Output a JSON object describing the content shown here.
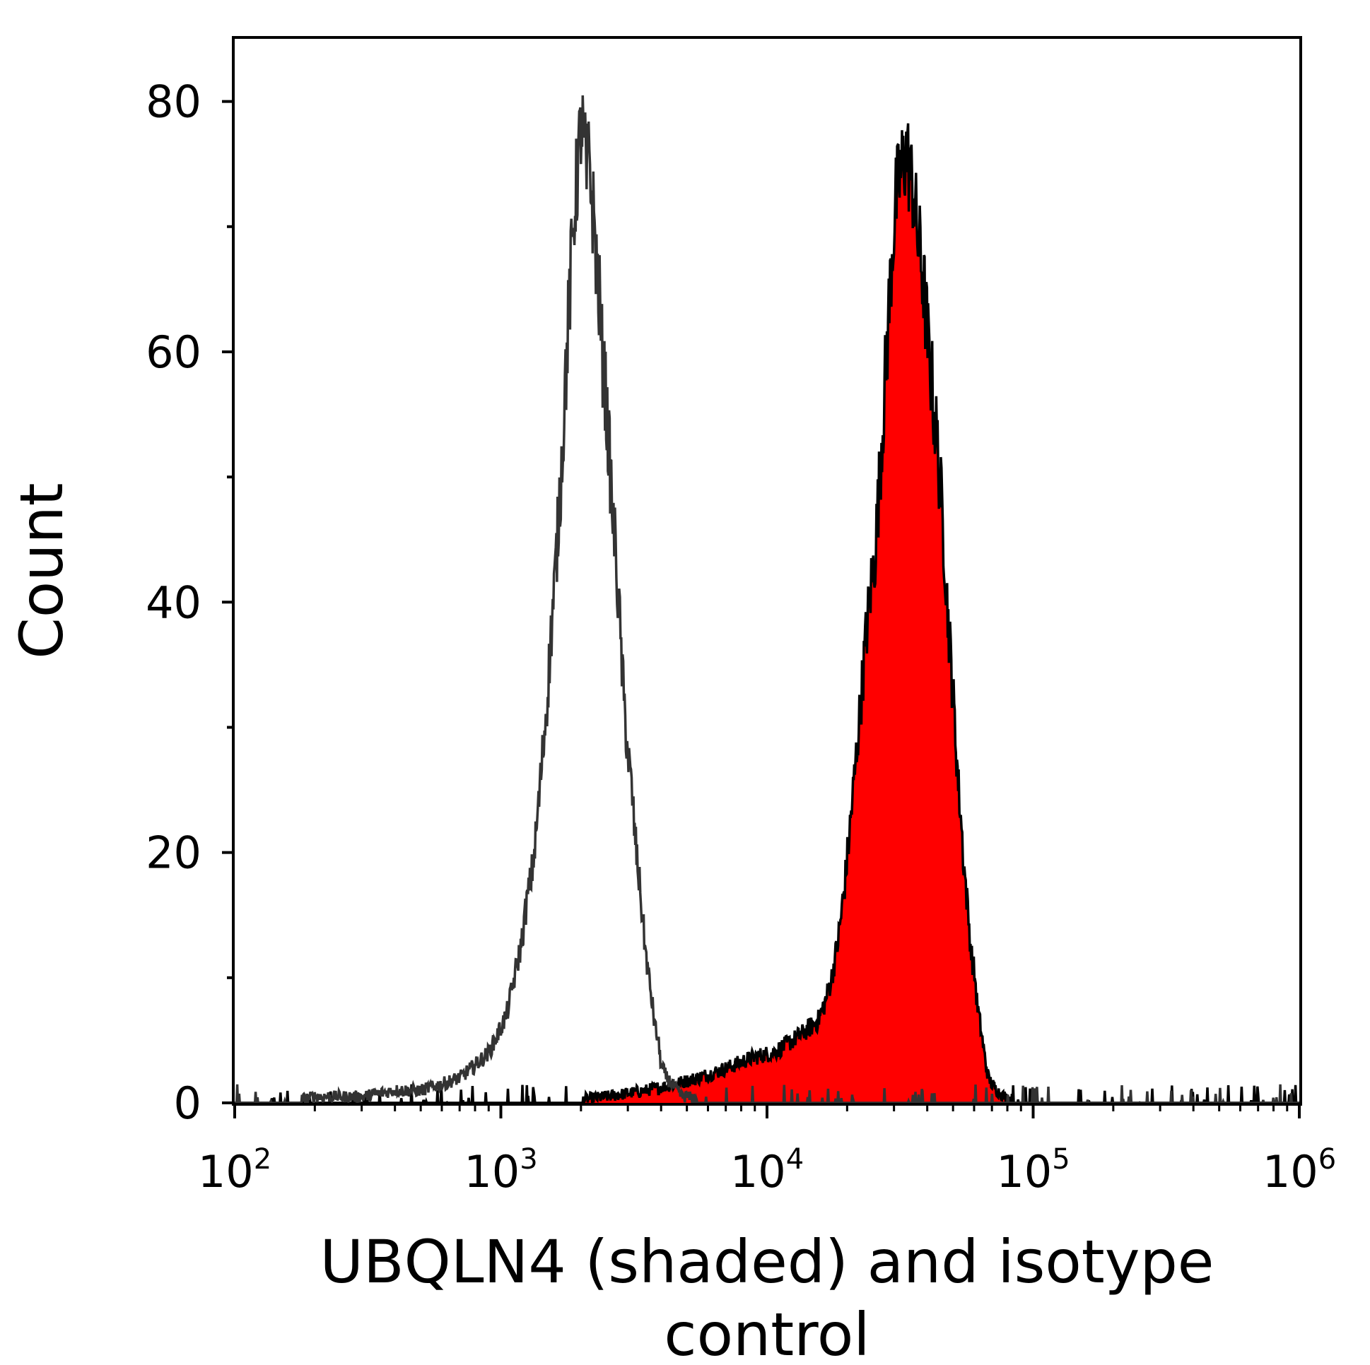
{
  "chart_data": {
    "type": "area",
    "xlabel": [
      "UBQLN4 (shaded) and isotype",
      "control"
    ],
    "ylabel": "Count",
    "x_scale": "log10",
    "xlim": [
      100,
      1000000
    ],
    "ylim": [
      0,
      85
    ],
    "x_ticks": [
      {
        "base": "10",
        "exp": "2",
        "value": 100
      },
      {
        "base": "10",
        "exp": "3",
        "value": 1000
      },
      {
        "base": "10",
        "exp": "4",
        "value": 10000
      },
      {
        "base": "10",
        "exp": "5",
        "value": 100000
      },
      {
        "base": "10",
        "exp": "6",
        "value": 1000000
      }
    ],
    "y_ticks": [
      {
        "label": "0",
        "value": 0
      },
      {
        "label": "20",
        "value": 20
      },
      {
        "label": "40",
        "value": 40
      },
      {
        "label": "60",
        "value": 60
      },
      {
        "label": "80",
        "value": 80
      }
    ],
    "y_minor_ticks": [
      10,
      30,
      50,
      70
    ],
    "grid": false,
    "series": [
      {
        "role": "shaded",
        "color": "#ff0000",
        "outline": "#000000",
        "x": [
          100,
          200,
          400,
          800,
          1500,
          2500,
          3500,
          4500,
          5500,
          6500,
          7500,
          8500,
          9500,
          10500,
          11500,
          12500,
          13500,
          14500,
          15500,
          16500,
          17500,
          18500,
          19500,
          20500,
          21500,
          22500,
          23500,
          24500,
          25500,
          26500,
          27500,
          28500,
          29500,
          30500,
          31500,
          32500,
          33500,
          34500,
          35500,
          36500,
          37500,
          38500,
          39500,
          40500,
          41500,
          42500,
          43500,
          44500,
          45500,
          46500,
          47500,
          48500,
          49500,
          50500,
          51500,
          52500,
          53500,
          54500,
          55500,
          56500,
          57500,
          58500,
          59500,
          60500,
          61500,
          62500,
          63500,
          64500,
          65500,
          66500,
          68000,
          70000,
          73000,
          78000,
          85000,
          100000,
          150000,
          1000000
        ],
        "y": [
          0,
          0,
          0,
          0,
          0,
          0.5,
          1,
          1.5,
          2,
          2.5,
          3,
          3.5,
          3.8,
          4,
          4.5,
          5,
          5.5,
          6,
          6.5,
          8,
          10,
          13,
          17,
          22,
          27,
          32,
          37,
          41,
          44,
          50,
          56,
          62,
          68,
          72,
          74,
          75,
          76,
          74,
          73,
          70,
          68,
          66,
          63,
          60,
          58,
          55,
          53,
          50,
          47,
          44,
          40,
          37,
          34,
          31,
          28,
          25,
          23,
          20,
          18,
          16,
          14,
          12,
          11,
          10,
          8,
          7,
          6,
          5,
          4,
          3,
          2,
          1.5,
          1,
          0.5,
          0.2,
          0,
          0,
          0
        ]
      },
      {
        "role": "isotype control",
        "color": "#333333",
        "x": [
          100,
          150,
          200,
          300,
          400,
          500,
          600,
          700,
          800,
          900,
          950,
          1000,
          1050,
          1100,
          1150,
          1200,
          1250,
          1300,
          1350,
          1400,
          1450,
          1500,
          1550,
          1600,
          1650,
          1700,
          1750,
          1800,
          1850,
          1900,
          1950,
          2000,
          2050,
          2100,
          2150,
          2200,
          2250,
          2300,
          2350,
          2400,
          2450,
          2500,
          2550,
          2600,
          2650,
          2700,
          2750,
          2800,
          2850,
          2900,
          2950,
          3000,
          3100,
          3200,
          3300,
          3400,
          3500,
          3600,
          3700,
          3800,
          3900,
          4000,
          4100,
          4200,
          4400,
          4600,
          4800,
          5000,
          5500,
          6000,
          7000,
          8000,
          10000,
          20000,
          100000,
          1000000
        ],
        "y": [
          0,
          0,
          0.5,
          0.5,
          1,
          1,
          1.5,
          2,
          3,
          4,
          5,
          6,
          7,
          9,
          11,
          13,
          16,
          18,
          21,
          25,
          29,
          33,
          38,
          42,
          47,
          52,
          58,
          63,
          68,
          72,
          75,
          78,
          77,
          74,
          76,
          72,
          70,
          66,
          64,
          60,
          58,
          55,
          52,
          49,
          46,
          44,
          41,
          38,
          35,
          32,
          30,
          28,
          25,
          21,
          18,
          15,
          12,
          10,
          8,
          6,
          5,
          3,
          2.5,
          2,
          1.5,
          1,
          0.5,
          0.5,
          0.3,
          0.2,
          0.1,
          0,
          0,
          0,
          0,
          0
        ]
      }
    ]
  }
}
